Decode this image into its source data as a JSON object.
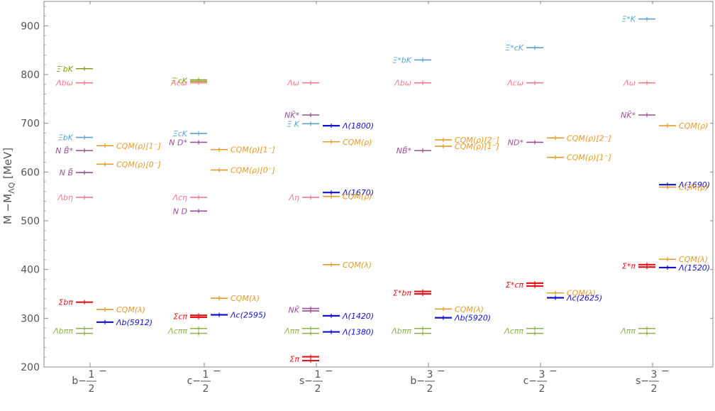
{
  "colors": {
    "threshold_pink": "#f07c8a",
    "threshold_purple": "#9b4f96",
    "threshold_blue": "#5ba3cf",
    "threshold_olive": "#8a9a1c",
    "threshold_green": "#8fb04a",
    "cqm_orange": "#e69a2c",
    "state_blue": "#1111cc",
    "sigma_red": "#e3141c"
  },
  "chart_data": {
    "type": "level-scheme",
    "title": "",
    "ylabel": "M −M",
    "ylabel_sub": "ΛQ",
    "ylabel_unit": " [MeV]",
    "ylim": [
      200,
      950
    ],
    "yticks": [
      200,
      300,
      400,
      500,
      600,
      700,
      800,
      900
    ],
    "grid": false,
    "categories": [
      {
        "id": "b-1",
        "prefix": "b−",
        "num": "1",
        "sup": "−",
        "den": "2"
      },
      {
        "id": "c-1",
        "prefix": "c−",
        "num": "1",
        "sup": "−",
        "den": "2"
      },
      {
        "id": "s-1",
        "prefix": "s−",
        "num": "1",
        "sup": "−",
        "den": "2"
      },
      {
        "id": "b-3",
        "prefix": "b−",
        "num": "3",
        "sup": "−",
        "den": "2"
      },
      {
        "id": "c-3",
        "prefix": "c−",
        "num": "3",
        "sup": "−",
        "den": "2"
      },
      {
        "id": "s-3",
        "prefix": "s−",
        "num": "3",
        "sup": "−",
        "den": "2"
      }
    ],
    "levels": [
      {
        "cat": 0,
        "slot": 0,
        "y": 812,
        "y2": 812,
        "label": "Ξ′bK",
        "color": "olive",
        "side": "L"
      },
      {
        "cat": 0,
        "slot": 0,
        "y": 783,
        "label": "Λbω",
        "color": "pink",
        "side": "L"
      },
      {
        "cat": 0,
        "slot": 0,
        "y": 671,
        "label": "ΞbK",
        "color": "blue",
        "side": "L"
      },
      {
        "cat": 0,
        "slot": 0,
        "y": 644,
        "label": "N B̄*",
        "color": "purple",
        "side": "L"
      },
      {
        "cat": 0,
        "slot": 0,
        "y": 599,
        "label": "N B̄",
        "color": "purple",
        "side": "L"
      },
      {
        "cat": 0,
        "slot": 0,
        "y": 548,
        "label": "Λbη",
        "color": "pink",
        "side": "L"
      },
      {
        "cat": 0,
        "slot": 0,
        "y": 333,
        "label": "Σbπ",
        "color": "red",
        "side": "L"
      },
      {
        "cat": 0,
        "slot": 0,
        "y": 279,
        "y2": 269,
        "label": "Λbππ",
        "color": "green",
        "side": "L"
      },
      {
        "cat": 0,
        "slot": 1,
        "y": 654,
        "label": "CQM(ρ)[1⁻]",
        "color": "orange",
        "side": "R"
      },
      {
        "cat": 0,
        "slot": 1,
        "y": 616,
        "label": "CQM(ρ)[0⁻]",
        "color": "orange",
        "side": "R"
      },
      {
        "cat": 0,
        "slot": 1,
        "y": 318,
        "label": "CQM(λ)",
        "color": "orange",
        "side": "R"
      },
      {
        "cat": 0,
        "slot": 1,
        "y": 292,
        "label": "Λb(5912)",
        "color": "state",
        "side": "R"
      },
      {
        "cat": 1,
        "slot": 0,
        "y": 789,
        "y2": 786,
        "label": "Ξ′cK",
        "color": "olive",
        "side": "L"
      },
      {
        "cat": 1,
        "slot": 0,
        "y": 783,
        "label": "Λcω",
        "color": "pink",
        "side": "L"
      },
      {
        "cat": 1,
        "slot": 0,
        "y": 679,
        "label": "ΞcK",
        "color": "blue",
        "side": "L"
      },
      {
        "cat": 1,
        "slot": 0,
        "y": 661,
        "label": "N D*",
        "color": "purple",
        "side": "L"
      },
      {
        "cat": 1,
        "slot": 0,
        "y": 548,
        "label": "Λcη",
        "color": "pink",
        "side": "L"
      },
      {
        "cat": 1,
        "slot": 0,
        "y": 520,
        "label": "N D",
        "color": "purple",
        "side": "L"
      },
      {
        "cat": 1,
        "slot": 0,
        "y": 306,
        "y2": 302,
        "label": "Σcπ",
        "color": "red",
        "side": "L"
      },
      {
        "cat": 1,
        "slot": 0,
        "y": 279,
        "y2": 269,
        "label": "Λcππ",
        "color": "green",
        "side": "L"
      },
      {
        "cat": 1,
        "slot": 1,
        "y": 646,
        "label": "CQM(ρ)[1⁻]",
        "color": "orange",
        "side": "R"
      },
      {
        "cat": 1,
        "slot": 1,
        "y": 604,
        "label": "CQM(ρ)[0⁻]",
        "color": "orange",
        "side": "R"
      },
      {
        "cat": 1,
        "slot": 1,
        "y": 341,
        "label": "CQM(λ)",
        "color": "orange",
        "side": "R"
      },
      {
        "cat": 1,
        "slot": 1,
        "y": 307,
        "label": "Λc(2595)",
        "color": "state",
        "side": "R"
      },
      {
        "cat": 2,
        "slot": 0,
        "y": 783,
        "label": "Λω",
        "color": "pink",
        "side": "L"
      },
      {
        "cat": 2,
        "slot": 0,
        "y": 717,
        "label": "NK̄*",
        "color": "purple",
        "side": "L"
      },
      {
        "cat": 2,
        "slot": 0,
        "y": 699,
        "label": "Ξ K",
        "color": "blue",
        "side": "L"
      },
      {
        "cat": 2,
        "slot": 0,
        "y": 548,
        "label": "Λη",
        "color": "pink",
        "side": "L"
      },
      {
        "cat": 2,
        "slot": 0,
        "y": 320,
        "y2": 315,
        "label": "NK̄",
        "color": "purple",
        "side": "L"
      },
      {
        "cat": 2,
        "slot": 0,
        "y": 279,
        "y2": 269,
        "label": "Λππ",
        "color": "green",
        "side": "L"
      },
      {
        "cat": 2,
        "slot": 0,
        "y": 221,
        "y2": 213,
        "label": "Σπ",
        "color": "red",
        "side": "L"
      },
      {
        "cat": 2,
        "slot": 1,
        "y": 695,
        "label": "Λ(1800)",
        "color": "state",
        "side": "R"
      },
      {
        "cat": 2,
        "slot": 1,
        "y": 662,
        "label": "CQM(ρ)",
        "color": "orange",
        "side": "R"
      },
      {
        "cat": 2,
        "slot": 1,
        "y": 558,
        "label": "Λ(1670)",
        "color": "state",
        "side": "R"
      },
      {
        "cat": 2,
        "slot": 1,
        "y": 550,
        "label": "CQM(ρ)",
        "color": "orange",
        "side": "R"
      },
      {
        "cat": 2,
        "slot": 1,
        "y": 410,
        "label": "CQM(λ)",
        "color": "orange",
        "side": "R"
      },
      {
        "cat": 2,
        "slot": 1,
        "y": 305,
        "label": "Λ(1420)",
        "color": "state",
        "side": "R"
      },
      {
        "cat": 2,
        "slot": 1,
        "y": 272,
        "label": "Λ(1380)",
        "color": "state",
        "side": "R"
      },
      {
        "cat": 3,
        "slot": 0,
        "y": 830,
        "label": "Ξ*bK",
        "color": "blue",
        "side": "L"
      },
      {
        "cat": 3,
        "slot": 0,
        "y": 783,
        "label": "Λbω",
        "color": "pink",
        "side": "L"
      },
      {
        "cat": 3,
        "slot": 0,
        "y": 644,
        "label": "NB̄*",
        "color": "purple",
        "side": "L"
      },
      {
        "cat": 3,
        "slot": 0,
        "y": 355,
        "y2": 350,
        "label": "Σ*bπ",
        "color": "red",
        "side": "L"
      },
      {
        "cat": 3,
        "slot": 0,
        "y": 279,
        "y2": 269,
        "label": "Λbππ",
        "color": "green",
        "side": "L"
      },
      {
        "cat": 3,
        "slot": 1,
        "y": 666,
        "label": "CQM(ρ)[2⁻]",
        "color": "orange",
        "side": "R"
      },
      {
        "cat": 3,
        "slot": 1,
        "y": 653,
        "label": "CQM(ρ)[1⁻]",
        "color": "orange",
        "side": "R"
      },
      {
        "cat": 3,
        "slot": 1,
        "y": 319,
        "label": "CQM(λ)",
        "color": "orange",
        "side": "R"
      },
      {
        "cat": 3,
        "slot": 1,
        "y": 301,
        "label": "Λb(5920)",
        "color": "state",
        "side": "R"
      },
      {
        "cat": 4,
        "slot": 0,
        "y": 855,
        "label": "Ξ*cK",
        "color": "blue",
        "side": "L"
      },
      {
        "cat": 4,
        "slot": 0,
        "y": 783,
        "label": "Λcω",
        "color": "pink",
        "side": "L"
      },
      {
        "cat": 4,
        "slot": 0,
        "y": 661,
        "label": "ND*",
        "color": "purple",
        "side": "L"
      },
      {
        "cat": 4,
        "slot": 0,
        "y": 372,
        "y2": 366,
        "label": "Σ*cπ",
        "color": "red",
        "side": "L"
      },
      {
        "cat": 4,
        "slot": 0,
        "y": 279,
        "y2": 269,
        "label": "Λcππ",
        "color": "green",
        "side": "L"
      },
      {
        "cat": 4,
        "slot": 1,
        "y": 670,
        "label": "CQM(ρ)[2⁻]",
        "color": "orange",
        "side": "R"
      },
      {
        "cat": 4,
        "slot": 1,
        "y": 630,
        "label": "CQM(ρ)[1⁻]",
        "color": "orange",
        "side": "R"
      },
      {
        "cat": 4,
        "slot": 1,
        "y": 352,
        "label": "CQM(λ)",
        "color": "orange",
        "side": "R"
      },
      {
        "cat": 4,
        "slot": 1,
        "y": 342,
        "label": "Λc(2625)",
        "color": "state",
        "side": "R"
      },
      {
        "cat": 5,
        "slot": 0,
        "y": 914,
        "label": "Ξ*K",
        "color": "blue",
        "side": "L"
      },
      {
        "cat": 5,
        "slot": 0,
        "y": 783,
        "label": "Λω",
        "color": "pink",
        "side": "L"
      },
      {
        "cat": 5,
        "slot": 0,
        "y": 717,
        "label": "NK̄*",
        "color": "purple",
        "side": "L"
      },
      {
        "cat": 5,
        "slot": 0,
        "y": 410,
        "y2": 405,
        "label": "Σ*π",
        "color": "red",
        "side": "L"
      },
      {
        "cat": 5,
        "slot": 0,
        "y": 279,
        "y2": 269,
        "label": "Λππ",
        "color": "green",
        "side": "L"
      },
      {
        "cat": 5,
        "slot": 1,
        "y": 695,
        "label": "CQM(ρ)",
        "color": "orange",
        "side": "R"
      },
      {
        "cat": 5,
        "slot": 1,
        "y": 574,
        "label": "Λ(1690)",
        "color": "state",
        "side": "R"
      },
      {
        "cat": 5,
        "slot": 1,
        "y": 569,
        "label": "CQM(ρ)",
        "color": "orange",
        "side": "R"
      },
      {
        "cat": 5,
        "slot": 1,
        "y": 421,
        "label": "CQM(λ)",
        "color": "orange",
        "side": "R"
      },
      {
        "cat": 5,
        "slot": 1,
        "y": 404,
        "label": "Λ(1520)",
        "color": "state",
        "side": "R"
      }
    ]
  }
}
